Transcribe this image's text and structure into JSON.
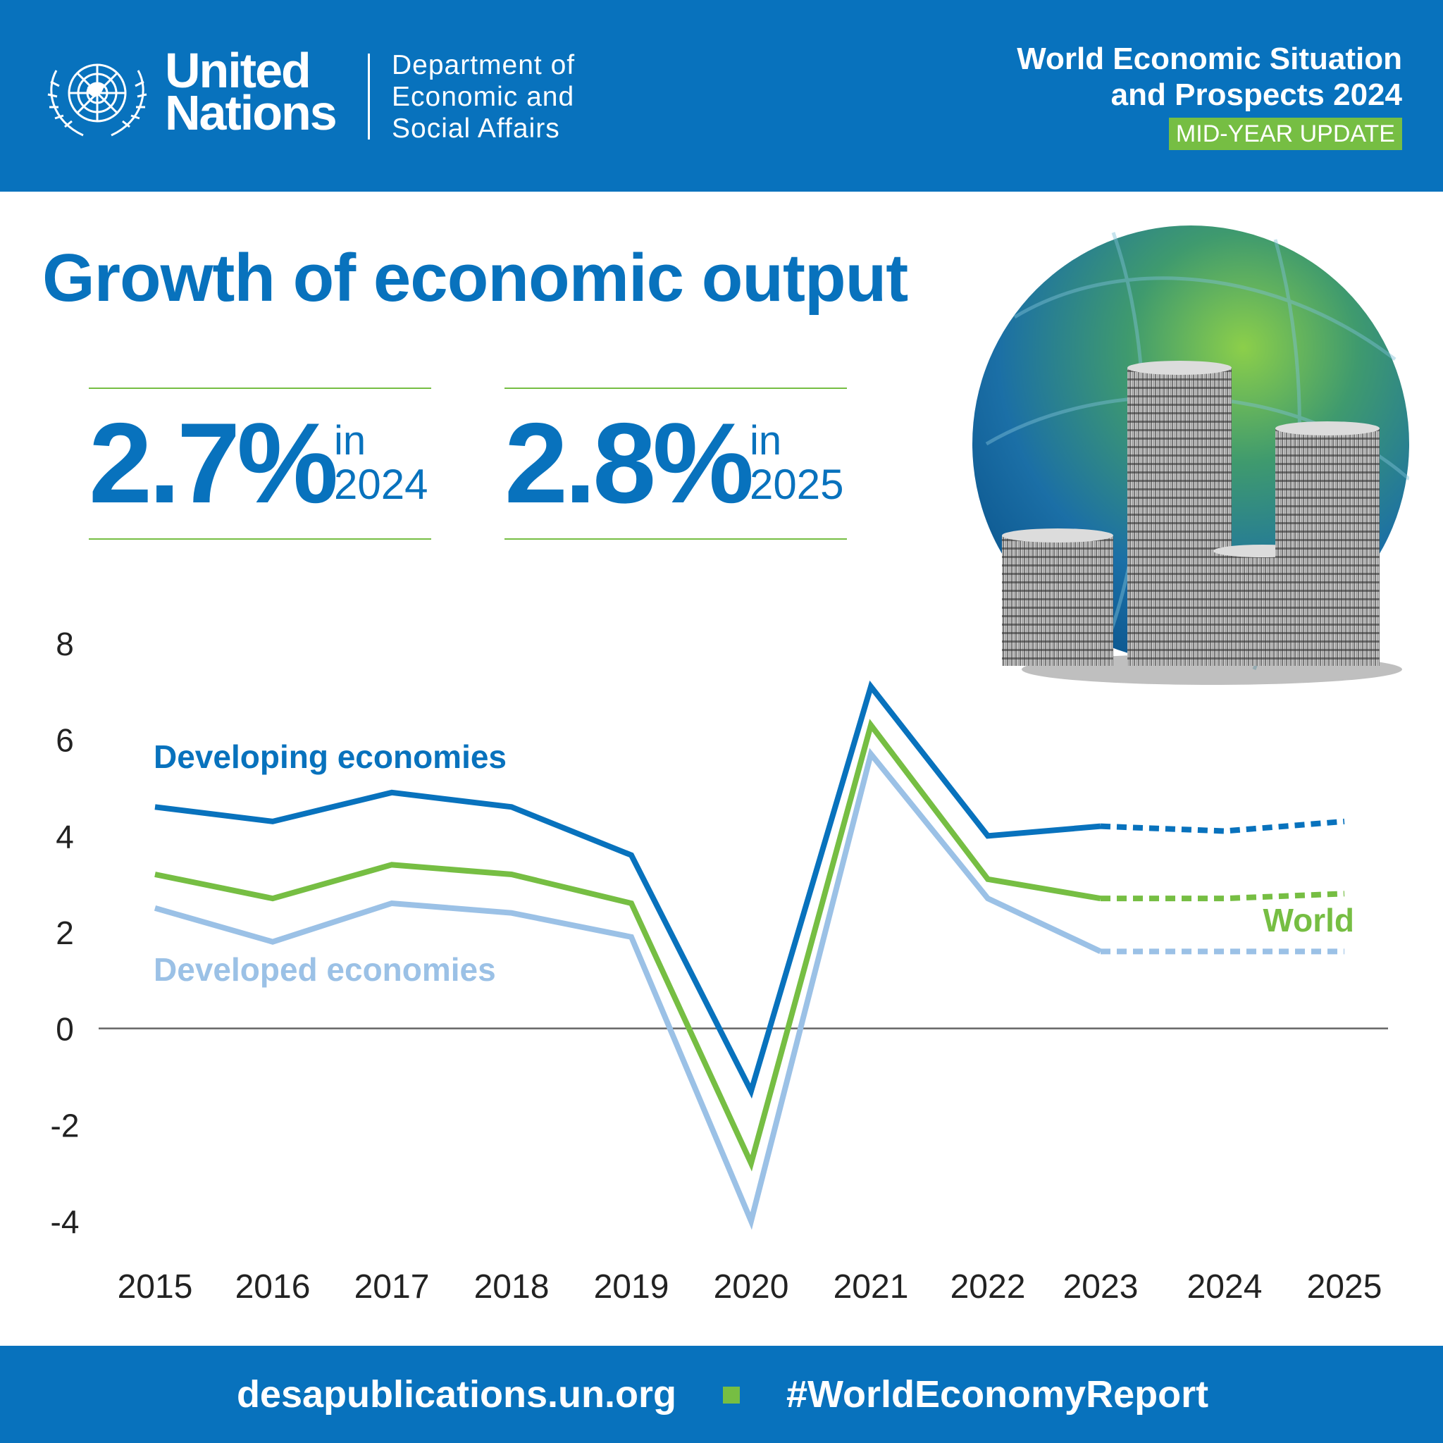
{
  "header": {
    "org_line1": "United",
    "org_line2": "Nations",
    "dept_line1": "Department of",
    "dept_line2": "Economic and",
    "dept_line3": "Social Affairs",
    "report_line1": "World Economic Situation",
    "report_line2": "and Prospects 2024",
    "badge": "MID-YEAR UPDATE"
  },
  "title": "Growth of economic output",
  "stats": [
    {
      "value": "2.7%",
      "in_label": "in",
      "year": "2024"
    },
    {
      "value": "2.8%",
      "in_label": "in",
      "year": "2025"
    }
  ],
  "colors": {
    "brand_blue": "#0872bd",
    "green": "#76be43",
    "light_blue": "#9bc1e6",
    "axis": "#666666"
  },
  "icons": {
    "emblem": "un-emblem-icon",
    "illustration": "globe-coins-illustration"
  },
  "chart_data": {
    "type": "line",
    "categories": [
      "2015",
      "2016",
      "2017",
      "2018",
      "2019",
      "2020",
      "2021",
      "2022",
      "2023",
      "2024",
      "2025"
    ],
    "ylim": [
      -4,
      8
    ],
    "y_ticks": [
      8,
      6,
      4,
      2,
      0,
      -2,
      -4
    ],
    "grid": false,
    "forecast_from": "2023",
    "series": [
      {
        "name": "Developing economies",
        "color": "#0872bd",
        "values": [
          4.6,
          4.3,
          4.9,
          4.6,
          3.6,
          -1.3,
          7.1,
          4.0,
          4.2,
          4.1,
          4.3
        ]
      },
      {
        "name": "World",
        "color": "#76be43",
        "values": [
          3.2,
          2.7,
          3.4,
          3.2,
          2.6,
          -2.8,
          6.3,
          3.1,
          2.7,
          2.7,
          2.8
        ]
      },
      {
        "name": "Developed economies",
        "color": "#9bc1e6",
        "values": [
          2.5,
          1.8,
          2.6,
          2.4,
          1.9,
          -4.0,
          5.7,
          2.7,
          1.6,
          1.6,
          1.6
        ]
      }
    ]
  },
  "footer": {
    "url": "desapublications.un.org",
    "hashtag": "#WorldEconomyReport"
  }
}
